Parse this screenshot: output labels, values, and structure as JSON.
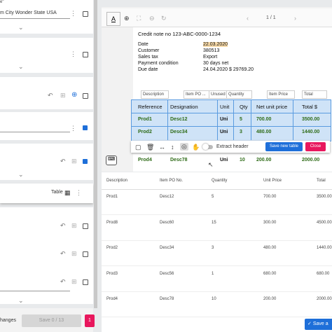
{
  "left_panel": {
    "field_label": "e\"",
    "address_value": "m City Wonder State USA",
    "table_label": "Table",
    "changes_label": "hanges",
    "save_button": "Save 0 / 13",
    "badge": "1"
  },
  "viewer": {
    "page_indicator": "1 / 1",
    "document": {
      "title": "Credit note no 123-ABC-0000-1234",
      "fields": [
        [
          "Date",
          "22.03.2020"
        ],
        [
          "Customer",
          "380513"
        ],
        [
          "Sales tax",
          "Export"
        ],
        [
          "Payment condition",
          "30 days net"
        ],
        [
          "Due date",
          "24.04.2020 $ 29769.20"
        ]
      ]
    },
    "column_selectors": [
      "Description",
      "Item PO ...",
      "Unused",
      "Quantity",
      "Item Price",
      "Total"
    ],
    "extracted_table": {
      "headers": [
        "Reference",
        "Designation",
        "Unit",
        "Qty",
        "Net unit price",
        "Total $"
      ],
      "rows": [
        [
          "Prod1",
          "Desc12",
          "Uni",
          "5",
          "700.00",
          "3500.00"
        ],
        [
          "Prod2",
          "Desc34",
          "Uni",
          "3",
          "480.00",
          "1440.00"
        ],
        [
          "Prod4",
          "Desc78",
          "Uni",
          "10",
          "200.00",
          "2000.00"
        ]
      ]
    },
    "toolbar": {
      "extract_header": "Extract header",
      "save_button": "Save new table",
      "close_button": "Close"
    }
  },
  "results_table": {
    "headers": [
      "Description",
      "Item PO No.",
      "Quantity",
      "Unit Price",
      "Total"
    ],
    "rows": [
      [
        "Prod1",
        "Desc12",
        "5",
        "700.00",
        "3500.00"
      ],
      [
        "Prod8",
        "Desc60",
        "15",
        "300.00",
        "4500.00"
      ],
      [
        "Prod2",
        "Desc34",
        "3",
        "480.00",
        "1440.00"
      ],
      [
        "Prod3",
        "Desc56",
        "1",
        "680.00",
        "680.00"
      ],
      [
        "Prod4",
        "Desc78",
        "10",
        "200.00",
        "2000.00"
      ]
    ]
  },
  "save_button": "Save a"
}
